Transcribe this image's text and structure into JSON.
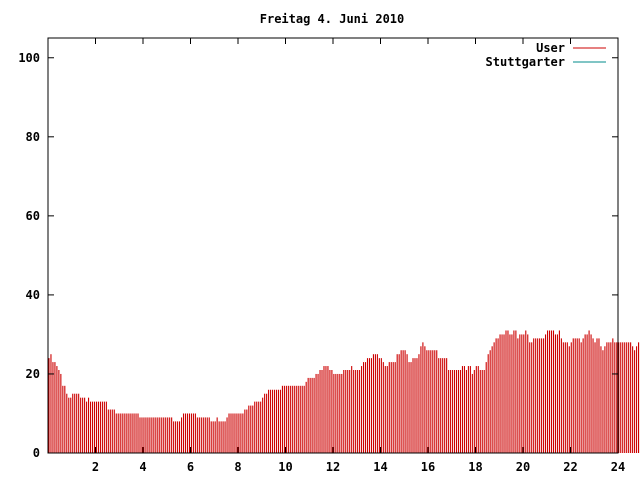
{
  "chart_data": {
    "type": "bar",
    "title": "Freitag 4. Juni 2010",
    "xlabel": "",
    "ylabel": "",
    "xlim": [
      0,
      24
    ],
    "ylim": [
      0,
      105
    ],
    "x_ticks": [
      2,
      4,
      6,
      8,
      10,
      12,
      14,
      16,
      18,
      20,
      22,
      24
    ],
    "y_ticks": [
      0,
      20,
      40,
      60,
      80,
      100
    ],
    "grid": false,
    "legend_position": "top-right",
    "series": [
      {
        "name": "User",
        "color": "#cc0000",
        "bin_hours": 0.0833,
        "values": [
          24,
          25,
          23,
          23,
          22,
          21,
          20,
          17,
          17,
          15,
          14,
          14,
          15,
          15,
          15,
          15,
          14,
          14,
          14,
          13,
          14,
          13,
          13,
          13,
          13,
          13,
          13,
          13,
          13,
          13,
          11,
          11,
          11,
          11,
          10,
          10,
          10,
          10,
          10,
          10,
          10,
          10,
          10,
          10,
          10,
          10,
          9,
          9,
          9,
          9,
          9,
          9,
          9,
          9,
          9,
          9,
          9,
          9,
          9,
          9,
          9,
          9,
          9,
          8,
          8,
          8,
          8,
          9,
          10,
          10,
          10,
          10,
          10,
          10,
          10,
          9,
          9,
          9,
          9,
          9,
          9,
          9,
          8,
          8,
          8,
          9,
          8,
          8,
          8,
          8,
          9,
          10,
          10,
          10,
          10,
          10,
          10,
          10,
          10,
          11,
          11,
          12,
          12,
          12,
          13,
          13,
          13,
          13,
          14,
          15,
          15,
          16,
          16,
          16,
          16,
          16,
          16,
          16,
          17,
          17,
          17,
          17,
          17,
          17,
          17,
          17,
          17,
          17,
          17,
          17,
          18,
          19,
          19,
          19,
          19,
          20,
          20,
          21,
          21,
          22,
          22,
          22,
          21,
          21,
          20,
          20,
          20,
          20,
          20,
          21,
          21,
          21,
          21,
          22,
          21,
          21,
          21,
          21,
          22,
          23,
          23,
          24,
          24,
          24,
          25,
          25,
          25,
          24,
          24,
          23,
          22,
          22,
          23,
          23,
          23,
          23,
          25,
          25,
          26,
          26,
          26,
          25,
          23,
          23,
          24,
          24,
          24,
          25,
          27,
          28,
          27,
          26,
          26,
          26,
          26,
          26,
          26,
          24,
          24,
          24,
          24,
          24,
          21,
          21,
          21,
          21,
          21,
          21,
          21,
          22,
          22,
          21,
          22,
          22,
          20,
          21,
          22,
          22,
          21,
          21,
          21,
          23,
          25,
          26,
          27,
          28,
          29,
          29,
          30,
          30,
          30,
          31,
          31,
          30,
          30,
          31,
          31,
          29,
          30,
          30,
          30,
          31,
          30,
          28,
          28,
          29,
          29,
          29,
          29,
          29,
          29,
          30,
          31,
          31,
          31,
          31,
          30,
          30,
          31,
          29,
          28,
          28,
          28,
          27,
          28,
          29,
          29,
          29,
          29,
          28,
          29,
          30,
          30,
          31,
          30,
          29,
          28,
          29,
          29,
          27,
          26,
          27,
          28,
          28,
          28,
          29,
          28,
          28,
          28,
          28,
          28,
          28,
          28,
          28,
          28,
          27,
          26,
          27,
          28,
          28,
          28,
          28,
          29
        ]
      },
      {
        "name": "Stuttgarter",
        "color": "#008b8b",
        "values": []
      }
    ]
  }
}
